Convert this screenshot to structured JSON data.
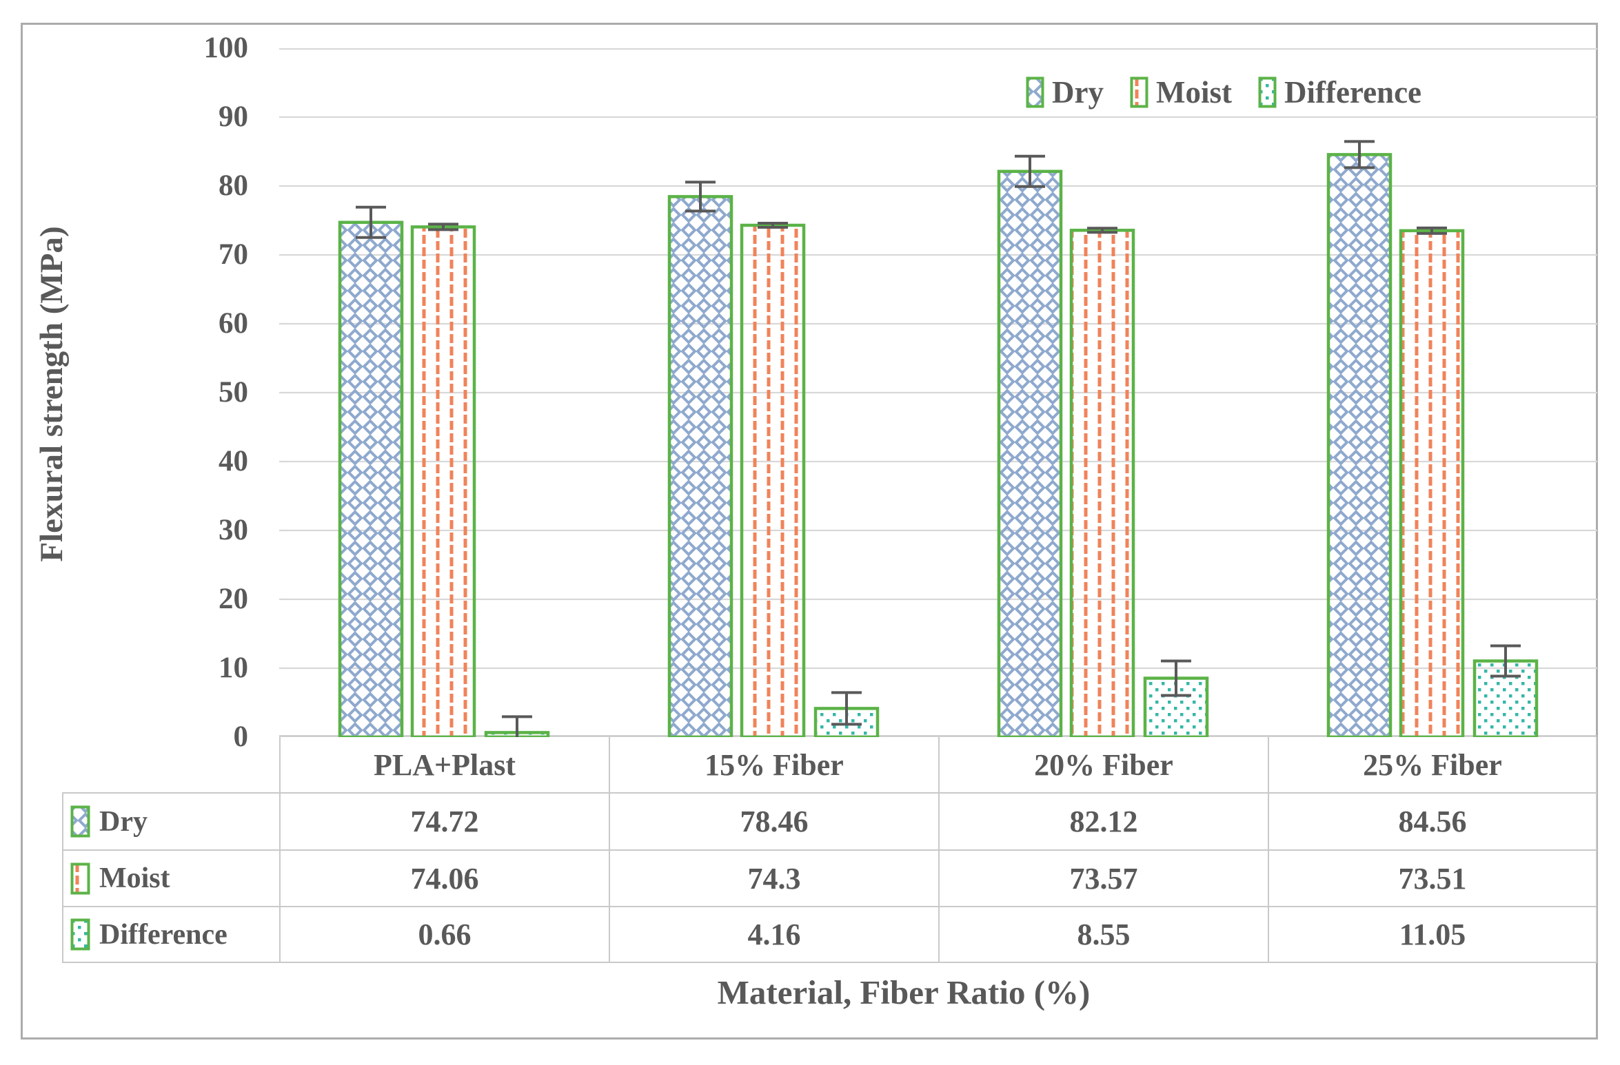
{
  "chart_data": {
    "type": "bar",
    "categories": [
      "PLA+Plast",
      "15% Fiber",
      "20% Fiber",
      "25% Fiber"
    ],
    "series": [
      {
        "name": "Dry",
        "values": [
          74.72,
          78.46,
          82.12,
          84.56
        ],
        "errors": [
          2.2,
          2.1,
          2.2,
          1.9
        ],
        "pattern": "crosshatch-diagonal",
        "color": "#8FA9CE"
      },
      {
        "name": "Moist",
        "values": [
          74.06,
          74.3,
          73.57,
          73.51
        ],
        "errors": [
          0.4,
          0.3,
          0.3,
          0.4
        ],
        "pattern": "dashed-vertical",
        "color": "#F0835A"
      },
      {
        "name": "Difference",
        "values": [
          0.66,
          4.16,
          8.55,
          11.05
        ],
        "errors": [
          2.3,
          2.3,
          2.5,
          2.2
        ],
        "pattern": "dotted-grid",
        "color": "#34B7A7"
      }
    ],
    "xlabel": "Material, Fiber Ratio (%)",
    "ylabel": "Flexural strength (MPa)",
    "ylim": [
      0,
      100
    ],
    "yticks": [
      100,
      90,
      80,
      70,
      60,
      50,
      40,
      30,
      20,
      10,
      0
    ],
    "grid": true,
    "legend_position": "top-right",
    "data_table_shown": true
  },
  "colors": {
    "bar_border": "#5BB347",
    "error_bar": "#595959",
    "gridline": "#D8D8D8",
    "axis_line": "#C2C2C2",
    "table_border": "#C9C9C9",
    "text": "#595959",
    "frame_border": "#ACACAC"
  }
}
